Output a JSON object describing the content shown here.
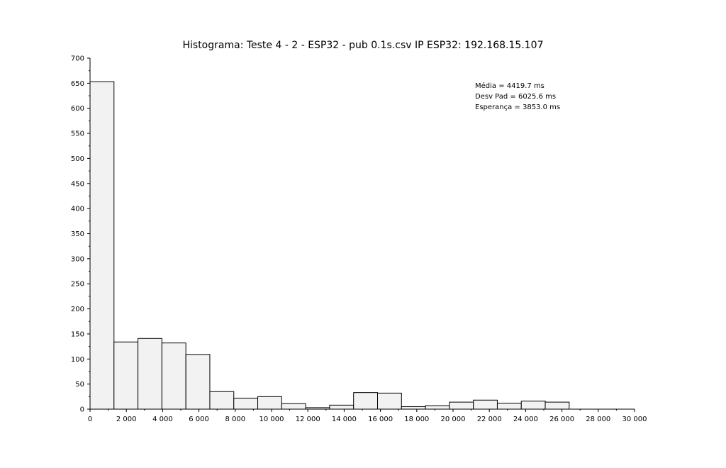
{
  "chart_data": {
    "type": "bar",
    "title": "Histograma: Teste 4 - 2 - ESP32 - pub 0.1s.csv IP ESP32: 192.168.15.107",
    "xlabel": "",
    "ylabel": "",
    "xlim": [
      0,
      30000
    ],
    "ylim": [
      0,
      700
    ],
    "grid": false,
    "legend": "none",
    "bar_fill": "#f2f2f2",
    "bar_stroke": "#000000",
    "x_ticks": [
      0,
      2000,
      4000,
      6000,
      8000,
      10000,
      12000,
      14000,
      16000,
      18000,
      20000,
      22000,
      24000,
      26000,
      28000,
      30000
    ],
    "x_tick_labels": [
      "0",
      "2 000",
      "4 000",
      "6 000",
      "8 000",
      "10 000",
      "12 000",
      "14 000",
      "16 000",
      "18 000",
      "20 000",
      "22 000",
      "24 000",
      "26 000",
      "28 000",
      "30 000"
    ],
    "y_ticks": [
      0,
      50,
      100,
      150,
      200,
      250,
      300,
      350,
      400,
      450,
      500,
      550,
      600,
      650,
      700
    ],
    "y_tick_labels": [
      "0",
      "50",
      "100",
      "150",
      "200",
      "250",
      "300",
      "350",
      "400",
      "450",
      "500",
      "550",
      "600",
      "650",
      "700"
    ],
    "bins": [
      {
        "x0": 0,
        "x1": 1320,
        "count": 653
      },
      {
        "x0": 1320,
        "x1": 2640,
        "count": 134
      },
      {
        "x0": 2640,
        "x1": 3960,
        "count": 141
      },
      {
        "x0": 3960,
        "x1": 5280,
        "count": 132
      },
      {
        "x0": 5280,
        "x1": 6600,
        "count": 109
      },
      {
        "x0": 6600,
        "x1": 7920,
        "count": 35
      },
      {
        "x0": 7920,
        "x1": 9240,
        "count": 22
      },
      {
        "x0": 9240,
        "x1": 10560,
        "count": 25
      },
      {
        "x0": 10560,
        "x1": 11880,
        "count": 11
      },
      {
        "x0": 11880,
        "x1": 13200,
        "count": 3
      },
      {
        "x0": 13200,
        "x1": 14520,
        "count": 8
      },
      {
        "x0": 14520,
        "x1": 15840,
        "count": 33
      },
      {
        "x0": 15840,
        "x1": 17160,
        "count": 32
      },
      {
        "x0": 17160,
        "x1": 18480,
        "count": 5
      },
      {
        "x0": 18480,
        "x1": 19800,
        "count": 7
      },
      {
        "x0": 19800,
        "x1": 21120,
        "count": 14
      },
      {
        "x0": 21120,
        "x1": 22440,
        "count": 18
      },
      {
        "x0": 22440,
        "x1": 23760,
        "count": 12
      },
      {
        "x0": 23760,
        "x1": 25080,
        "count": 16
      },
      {
        "x0": 25080,
        "x1": 26400,
        "count": 14
      }
    ],
    "annotations": [
      "Média = 4419.7 ms",
      "Desv Pad = 6025.6 ms",
      "Esperança = 3853.0 ms"
    ]
  }
}
